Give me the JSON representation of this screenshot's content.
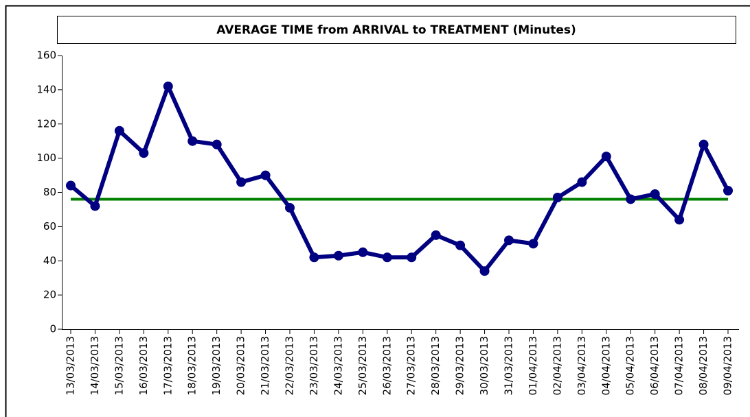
{
  "chart_data": {
    "type": "line",
    "title": "AVERAGE TIME from ARRIVAL to TREATMENT (Minutes)",
    "categories": [
      "13/03/2013",
      "14/03/2013",
      "15/03/2013",
      "16/03/2013",
      "17/03/2013",
      "18/03/2013",
      "19/03/2013",
      "20/03/2013",
      "21/03/2013",
      "22/03/2013",
      "23/03/2013",
      "24/03/2013",
      "25/03/2013",
      "26/03/2013",
      "27/03/2013",
      "28/03/2013",
      "29/03/2013",
      "30/03/2013",
      "31/03/2013",
      "01/04/2013",
      "02/04/2013",
      "03/04/2013",
      "04/04/2013",
      "05/04/2013",
      "06/04/2013",
      "07/04/2013",
      "08/04/2013",
      "09/04/2013"
    ],
    "values": [
      84,
      72,
      116,
      103,
      142,
      110,
      108,
      86,
      90,
      71,
      42,
      43,
      45,
      42,
      42,
      55,
      49,
      34,
      52,
      50,
      77,
      86,
      101,
      76,
      79,
      64,
      108,
      81
    ],
    "color": "#000080",
    "reference_line": {
      "value": 76,
      "color": "#008000"
    },
    "ylim": [
      0,
      160
    ],
    "yticks": [
      0,
      20,
      40,
      60,
      80,
      100,
      120,
      140,
      160
    ],
    "grid": false
  }
}
